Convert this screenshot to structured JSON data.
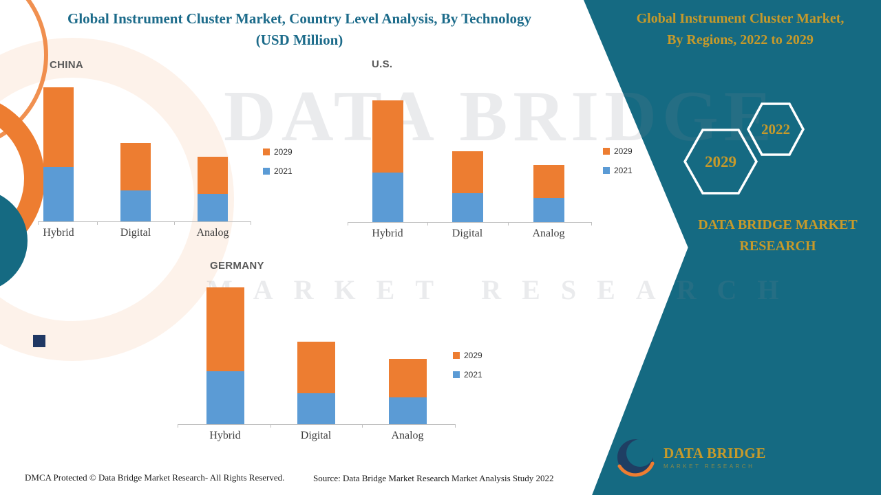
{
  "header": {
    "main_title_line1": "Global Instrument Cluster Market, Country Level Analysis, By Technology",
    "main_title_line2": "(USD Million)"
  },
  "side_panel": {
    "title_line1": "Global Instrument Cluster Market,",
    "title_line2": "By Regions, 2022 to 2029",
    "hexagons": [
      {
        "label": "2029"
      },
      {
        "label": "2022"
      }
    ],
    "brand_line1": "DATA BRIDGE MARKET",
    "brand_line2": "RESEARCH",
    "logo_name": "DATA BRIDGE",
    "logo_tagline": "MARKET RESEARCH"
  },
  "watermark": {
    "line1": "DATA BRIDGE",
    "line2": "MARKET RESEARCH"
  },
  "legend": {
    "items": [
      {
        "label": "2029",
        "color": "#ED7D31"
      },
      {
        "label": "2021",
        "color": "#5B9BD5"
      }
    ]
  },
  "footer": {
    "dmca": "DMCA Protected © Data Bridge Market Research- All Rights Reserved.",
    "source": "Source: Data Bridge Market Research Market Analysis Study 2022"
  },
  "colors": {
    "orange_2029": "#ED7D31",
    "blue_2021": "#5B9BD5",
    "band_teal": "#156A82",
    "gold": "#C79A2A",
    "title_teal": "#1C6B8A"
  },
  "chart_data": [
    {
      "type": "bar",
      "stacked": true,
      "title": "CHINA",
      "categories": [
        "Hybrid",
        "Digital",
        "Analog"
      ],
      "series": [
        {
          "name": "2021",
          "color": "#5B9BD5",
          "values": [
            79,
            45,
            40
          ]
        },
        {
          "name": "2029",
          "color": "#ED7D31",
          "values": [
            116,
            69,
            54
          ]
        }
      ],
      "unit": "USD Million (no numeric axis shown; values estimated as relative heights)",
      "ylim": [
        0,
        210
      ],
      "grid": false,
      "legend_position": "right",
      "stack_order": "2021 bottom, 2029 top"
    },
    {
      "type": "bar",
      "stacked": true,
      "title": "U.S.",
      "categories": [
        "Hybrid",
        "Digital",
        "Analog"
      ],
      "series": [
        {
          "name": "2021",
          "color": "#5B9BD5",
          "values": [
            72,
            42,
            35
          ]
        },
        {
          "name": "2029",
          "color": "#ED7D31",
          "values": [
            105,
            61,
            48
          ]
        }
      ],
      "unit": "USD Million (no numeric axis shown; values estimated as relative heights)",
      "ylim": [
        0,
        210
      ],
      "grid": false,
      "legend_position": "right",
      "stack_order": "2021 bottom, 2029 top"
    },
    {
      "type": "bar",
      "stacked": true,
      "title": "GERMANY",
      "categories": [
        "Hybrid",
        "Digital",
        "Analog"
      ],
      "series": [
        {
          "name": "2021",
          "color": "#5B9BD5",
          "values": [
            77,
            45,
            39
          ]
        },
        {
          "name": "2029",
          "color": "#ED7D31",
          "values": [
            122,
            75,
            56
          ]
        }
      ],
      "unit": "USD Million (no numeric axis shown; values estimated as relative heights)",
      "ylim": [
        0,
        210
      ],
      "grid": false,
      "legend_position": "right",
      "stack_order": "2021 bottom, 2029 top"
    }
  ]
}
